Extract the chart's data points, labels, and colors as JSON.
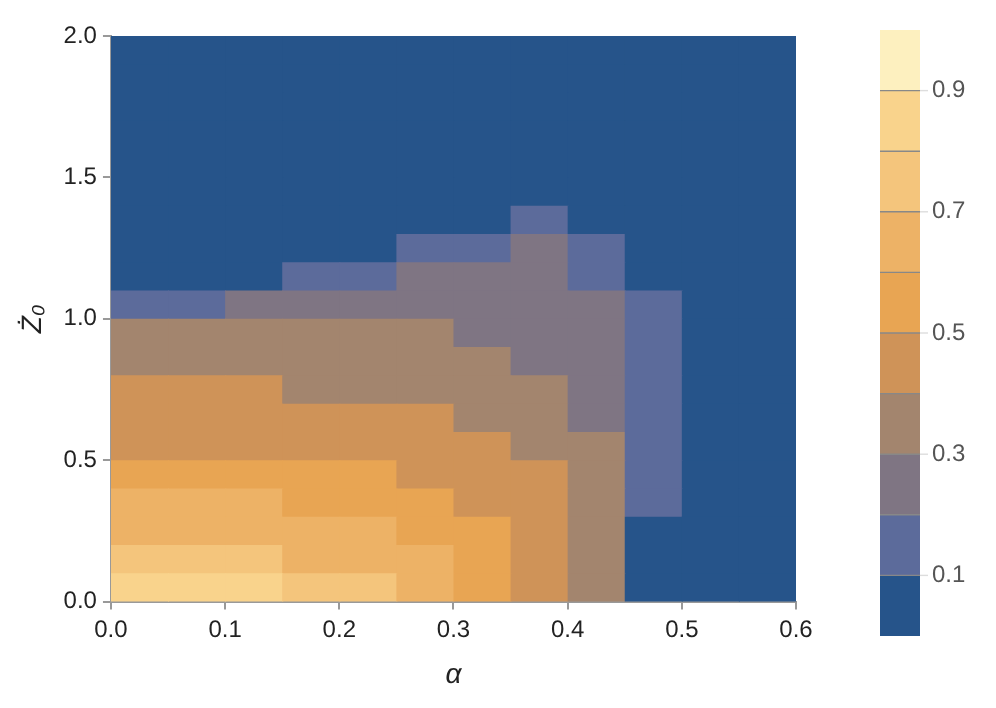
{
  "chart_data": {
    "type": "heatmap",
    "xlabel": "α",
    "ylabel": "Ż₀",
    "xlim": [
      0,
      0.6
    ],
    "ylim": [
      0,
      2
    ],
    "xticks": [
      {
        "value": 0,
        "label": "0.0"
      },
      {
        "value": 0.1,
        "label": "0.1"
      },
      {
        "value": 0.2,
        "label": "0.2"
      },
      {
        "value": 0.3,
        "label": "0.3"
      },
      {
        "value": 0.4,
        "label": "0.4"
      },
      {
        "value": 0.5,
        "label": "0.5"
      },
      {
        "value": 0.6,
        "label": "0.6"
      }
    ],
    "yticks": [
      {
        "value": 0,
        "label": "0.0"
      },
      {
        "value": 0.5,
        "label": "0.5"
      },
      {
        "value": 1,
        "label": "1.0"
      },
      {
        "value": 1.5,
        "label": "1.5"
      },
      {
        "value": 2,
        "label": "2.0"
      }
    ],
    "clim": [
      0,
      1
    ],
    "cticks": [
      0.1,
      0.3,
      0.5,
      0.7,
      0.9
    ],
    "colors": [
      "#26548a",
      "#5c6b9b",
      "#7f7583",
      "#a3856e",
      "#cf9358",
      "#e8a553",
      "#edb266",
      "#f4c57c",
      "#f9d38c",
      "#fdf0bf"
    ],
    "cells": [
      [
        0.05,
        0.05,
        0.05,
        0.05,
        0.05,
        0.05,
        0.05,
        0.05,
        0.05,
        0.05,
        0.05,
        0.05
      ],
      [
        0.05,
        0.05,
        0.05,
        0.05,
        0.05,
        0.05,
        0.05,
        0.05,
        0.05,
        0.05,
        0.05,
        0.05
      ],
      [
        0.05,
        0.05,
        0.05,
        0.05,
        0.05,
        0.05,
        0.05,
        0.05,
        0.05,
        0.05,
        0.05,
        0.05
      ],
      [
        0.05,
        0.05,
        0.05,
        0.05,
        0.05,
        0.05,
        0.05,
        0.05,
        0.05,
        0.05,
        0.05,
        0.05
      ],
      [
        0.05,
        0.05,
        0.05,
        0.05,
        0.05,
        0.05,
        0.05,
        0.05,
        0.05,
        0.05,
        0.05,
        0.05
      ],
      [
        0.05,
        0.05,
        0.05,
        0.05,
        0.05,
        0.05,
        0.05,
        0.05,
        0.05,
        0.05,
        0.05,
        0.05
      ],
      [
        0.05,
        0.05,
        0.05,
        0.05,
        0.05,
        0.05,
        0.05,
        0.15,
        0.05,
        0.05,
        0.05,
        0.05
      ],
      [
        0.05,
        0.05,
        0.05,
        0.05,
        0.05,
        0.15,
        0.15,
        0.25,
        0.15,
        0.05,
        0.05,
        0.05
      ],
      [
        0.05,
        0.05,
        0.05,
        0.15,
        0.15,
        0.25,
        0.25,
        0.25,
        0.15,
        0.05,
        0.05,
        0.05
      ],
      [
        0.15,
        0.15,
        0.25,
        0.25,
        0.25,
        0.25,
        0.25,
        0.25,
        0.25,
        0.15,
        0.05,
        0.05
      ],
      [
        0.35,
        0.35,
        0.35,
        0.35,
        0.35,
        0.35,
        0.25,
        0.25,
        0.25,
        0.15,
        0.05,
        0.05
      ],
      [
        0.35,
        0.35,
        0.35,
        0.35,
        0.35,
        0.35,
        0.35,
        0.25,
        0.25,
        0.15,
        0.05,
        0.05
      ],
      [
        0.45,
        0.45,
        0.45,
        0.35,
        0.35,
        0.35,
        0.35,
        0.35,
        0.25,
        0.15,
        0.05,
        0.05
      ],
      [
        0.45,
        0.45,
        0.45,
        0.45,
        0.45,
        0.45,
        0.35,
        0.35,
        0.25,
        0.15,
        0.05,
        0.05
      ],
      [
        0.45,
        0.45,
        0.45,
        0.45,
        0.45,
        0.45,
        0.45,
        0.35,
        0.35,
        0.15,
        0.05,
        0.05
      ],
      [
        0.55,
        0.55,
        0.55,
        0.55,
        0.55,
        0.45,
        0.45,
        0.45,
        0.35,
        0.15,
        0.05,
        0.05
      ],
      [
        0.65,
        0.65,
        0.65,
        0.55,
        0.55,
        0.55,
        0.45,
        0.45,
        0.35,
        0.15,
        0.05,
        0.05
      ],
      [
        0.65,
        0.65,
        0.65,
        0.65,
        0.65,
        0.55,
        0.55,
        0.45,
        0.35,
        0.05,
        0.05,
        0.05
      ],
      [
        0.75,
        0.75,
        0.75,
        0.65,
        0.65,
        0.65,
        0.55,
        0.45,
        0.35,
        0.05,
        0.05,
        0.05
      ],
      [
        0.85,
        0.85,
        0.85,
        0.75,
        0.75,
        0.65,
        0.55,
        0.45,
        0.35,
        0.05,
        0.05,
        0.05
      ]
    ]
  }
}
